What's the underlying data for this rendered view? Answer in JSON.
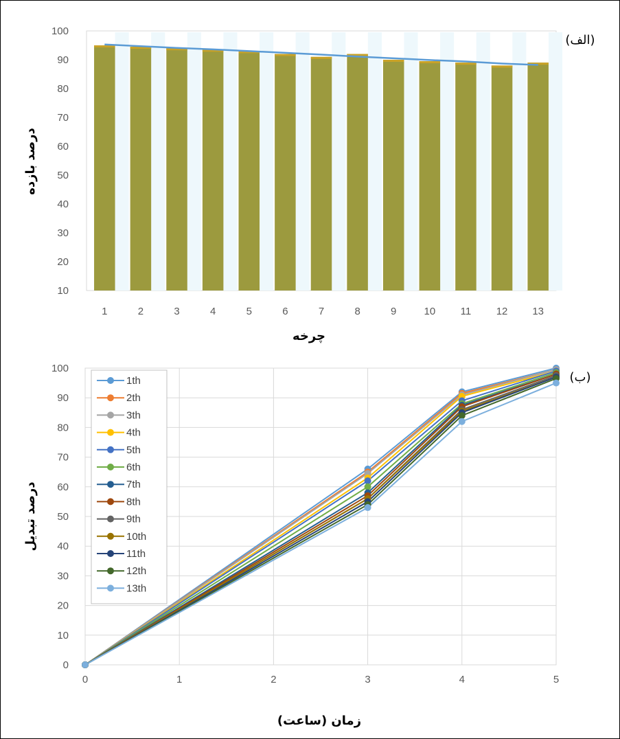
{
  "chart_data": [
    {
      "type": "bar",
      "panel_label": "(الف)",
      "categories": [
        "1",
        "2",
        "3",
        "4",
        "5",
        "6",
        "7",
        "8",
        "9",
        "10",
        "11",
        "12",
        "13"
      ],
      "series": [
        {
          "values": [
            95,
            94.5,
            94,
            93.5,
            93,
            92,
            91,
            92,
            90,
            89.5,
            89,
            88,
            89
          ],
          "color": "#9c9a3e"
        }
      ],
      "trend_line": {
        "values": [
          95.3,
          94.7,
          94.1,
          93.6,
          93,
          92.4,
          91.8,
          91.1,
          90.5,
          89.9,
          89.4,
          88.7,
          88.2
        ],
        "color": "#5b9bd5"
      },
      "xlabel": "چرخه",
      "ylabel": "درصد بازده",
      "ylim": [
        10,
        100
      ],
      "yticks": [
        10,
        20,
        30,
        40,
        50,
        60,
        70,
        80,
        90,
        100
      ],
      "grid": false
    },
    {
      "type": "line",
      "panel_label": "(ب)",
      "x": [
        0,
        3,
        4,
        5
      ],
      "xlabel": "زمان (ساعت)",
      "ylabel": "درصد تبدیل",
      "xlim": [
        0,
        5
      ],
      "xticks": [
        0,
        1,
        2,
        3,
        4,
        5
      ],
      "ylim": [
        0,
        100
      ],
      "yticks": [
        0,
        10,
        20,
        30,
        40,
        50,
        60,
        70,
        80,
        90,
        100
      ],
      "grid": true,
      "legend_position": "top-left",
      "series": [
        {
          "name": "1th",
          "color": "#5b9bd5",
          "values": [
            0,
            66,
            92,
            100
          ]
        },
        {
          "name": "2th",
          "color": "#ed7d31",
          "values": [
            0,
            65,
            91.5,
            99.5
          ]
        },
        {
          "name": "3th",
          "color": "#a5a5a5",
          "values": [
            0,
            64.5,
            91,
            99.5
          ]
        },
        {
          "name": "4th",
          "color": "#ffc000",
          "values": [
            0,
            63,
            90.5,
            99
          ]
        },
        {
          "name": "5th",
          "color": "#4472c4",
          "values": [
            0,
            62,
            89,
            99
          ]
        },
        {
          "name": "6th",
          "color": "#70ad47",
          "values": [
            0,
            60,
            88,
            98.5
          ]
        },
        {
          "name": "7th",
          "color": "#255e91",
          "values": [
            0,
            58,
            87.5,
            98
          ]
        },
        {
          "name": "8th",
          "color": "#9e480e",
          "values": [
            0,
            57,
            87,
            98
          ]
        },
        {
          "name": "9th",
          "color": "#636363",
          "values": [
            0,
            56,
            86,
            97.5
          ]
        },
        {
          "name": "10th",
          "color": "#997300",
          "values": [
            0,
            56,
            85.5,
            97
          ]
        },
        {
          "name": "11th",
          "color": "#264478",
          "values": [
            0,
            55,
            85,
            97
          ]
        },
        {
          "name": "12th",
          "color": "#43682b",
          "values": [
            0,
            54,
            84,
            96.5
          ]
        },
        {
          "name": "13th",
          "color": "#7cafdd",
          "values": [
            0,
            53,
            82,
            95
          ]
        }
      ]
    }
  ]
}
